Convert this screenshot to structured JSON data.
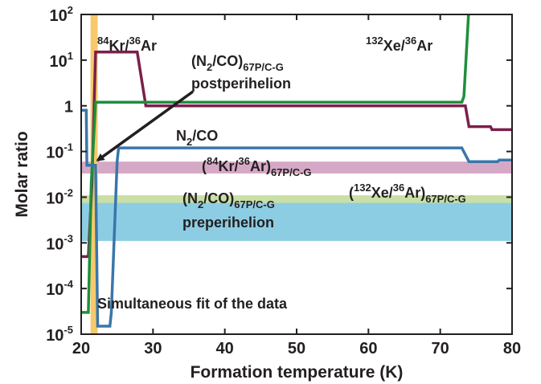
{
  "chart_data": {
    "type": "line",
    "xlabel": "Formation temperature (K)",
    "ylabel": "Molar ratio",
    "xlim": [
      20,
      80
    ],
    "ylim": [
      1e-05,
      100
    ],
    "y_scale": "log",
    "grid": false,
    "x_ticks": [
      20,
      30,
      40,
      50,
      60,
      70,
      80
    ],
    "x_tick_labels": [
      "20",
      "30",
      "40",
      "50",
      "60",
      "70",
      "80"
    ],
    "y_ticks": [
      1e-05,
      0.0001,
      0.001,
      0.01,
      0.1,
      1,
      10,
      100
    ],
    "y_tick_labels": [
      {
        "base": "10",
        "exp": "-5"
      },
      {
        "base": "10",
        "exp": "-4"
      },
      {
        "base": "10",
        "exp": "-3"
      },
      {
        "base": "10",
        "exp": "-2"
      },
      {
        "base": "10",
        "exp": "-1"
      },
      {
        "base": "1",
        "exp": ""
      },
      {
        "base": "10",
        "exp": "1"
      },
      {
        "base": "10",
        "exp": "2"
      }
    ],
    "series": [
      {
        "key": "kr",
        "color": "#7b1f4b",
        "label": {
          "sup1": "84",
          "t1": "Kr/",
          "sup2": "36",
          "t2": "Ar"
        },
        "points": [
          [
            20,
            0.0005
          ],
          [
            21,
            0.0005
          ],
          [
            21.5,
            0.02
          ],
          [
            22,
            15
          ],
          [
            27.8,
            15
          ],
          [
            29,
            1
          ],
          [
            73.5,
            1
          ],
          [
            74,
            0.35
          ],
          [
            77,
            0.35
          ],
          [
            77.2,
            0.3
          ],
          [
            80,
            0.3
          ]
        ]
      },
      {
        "key": "xe",
        "color": "#1e8f3b",
        "label": {
          "sup1": "132",
          "t1": "Xe/",
          "sup2": "36",
          "t2": "Ar"
        },
        "points": [
          [
            20,
            3e-05
          ],
          [
            21,
            3e-05
          ],
          [
            21.4,
            0.02
          ],
          [
            22,
            1.2
          ],
          [
            73,
            1.2
          ],
          [
            73.3,
            1.6
          ],
          [
            74,
            150
          ]
        ]
      },
      {
        "key": "n2co",
        "color": "#3a76aa",
        "label": {
          "t1": "N",
          "sub1": "2",
          "t2": "/CO"
        },
        "points": [
          [
            20,
            0.8
          ],
          [
            20.7,
            0.8
          ],
          [
            20.8,
            0.05
          ],
          [
            22,
            0.05
          ],
          [
            22.3,
            1.5e-05
          ],
          [
            24,
            1.5e-05
          ],
          [
            24.2,
            3e-05
          ],
          [
            25,
            0.06
          ],
          [
            25.2,
            0.12
          ],
          [
            73,
            0.12
          ],
          [
            74,
            0.06
          ],
          [
            78,
            0.06
          ],
          [
            78.2,
            0.065
          ],
          [
            80,
            0.065
          ]
        ]
      }
    ],
    "bands": [
      {
        "key": "kr-band",
        "color": "#d5a8c6",
        "y": [
          0.033,
          0.06
        ],
        "label": {
          "open": "(",
          "sup1": "84",
          "t1": "Kr/",
          "sup2": "36",
          "t2": "Ar)",
          "sub": "67P/C-G"
        }
      },
      {
        "key": "xe-band",
        "color": "#c9dfa4",
        "y": [
          0.0075,
          0.011
        ],
        "label": {
          "open": "(",
          "sup1": "132",
          "t1": "Xe/",
          "sup2": "36",
          "t2": "Ar)",
          "sub": "67P/C-G"
        }
      },
      {
        "key": "n2co-pre-band",
        "color": "#8dcde3",
        "y": [
          0.0011,
          0.0075
        ],
        "label": {
          "t1": "(N",
          "sub1": "2",
          "t2": "/CO)",
          "sub": "67P/C-G",
          "line2": "preperihelion"
        }
      }
    ],
    "vertical_band": {
      "color": "#f7c96b",
      "x": [
        21.3,
        22.3
      ]
    },
    "annotations": {
      "n2co_post": {
        "t1": "(N",
        "sub1": "2",
        "t2": "/CO)",
        "sub": "67P/C-G",
        "line2": "postperihelion",
        "arrow_tip": [
          21.6,
          0.05
        ]
      },
      "simultaneous_fit": "Simultaneous fit of the data"
    }
  }
}
